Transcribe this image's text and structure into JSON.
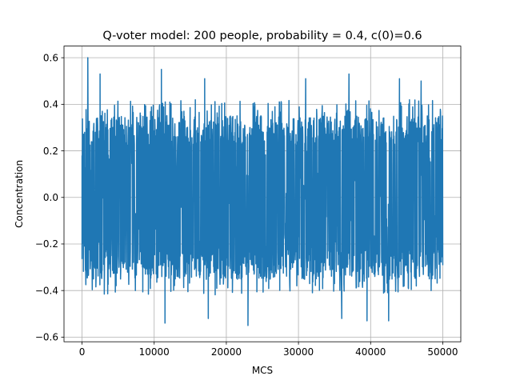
{
  "chart_data": {
    "type": "line",
    "title": "Q-voter model: 200 people,  probability = 0.4, c(0)=0.6",
    "xlabel": "MCS",
    "ylabel": "Concentration",
    "xlim": [
      -2500,
      52500
    ],
    "ylim": [
      -0.62,
      0.65
    ],
    "grid": true,
    "line_color": "#1f77b4",
    "x_ticks": [
      0,
      10000,
      20000,
      30000,
      40000,
      50000
    ],
    "x_tick_labels": [
      "0",
      "10000",
      "20000",
      "30000",
      "40000",
      "50000"
    ],
    "y_ticks": [
      -0.6,
      -0.4,
      -0.2,
      0.0,
      0.2,
      0.4,
      0.6
    ],
    "y_tick_labels": [
      "−0.6",
      "−0.4",
      "−0.2",
      "0.0",
      "0.2",
      "0.4",
      "0.6"
    ],
    "series": [
      {
        "name": "concentration",
        "x_start": 0,
        "x_end": 50000,
        "n_points": 50000,
        "initial_value": 0.6,
        "typical_min": -0.32,
        "typical_max": 0.32,
        "peaks": [
          {
            "x": 800,
            "value": 0.6
          },
          {
            "x": 2500,
            "value": 0.53
          },
          {
            "x": 11000,
            "value": 0.55
          },
          {
            "x": 17000,
            "value": 0.51
          },
          {
            "x": 31000,
            "value": 0.51
          },
          {
            "x": 37000,
            "value": 0.53
          },
          {
            "x": 44000,
            "value": 0.51
          },
          {
            "x": 47000,
            "value": 0.5
          },
          {
            "x": 23000,
            "value": -0.55
          },
          {
            "x": 11500,
            "value": -0.54
          },
          {
            "x": 39500,
            "value": -0.53
          },
          {
            "x": 42500,
            "value": -0.53
          },
          {
            "x": 17500,
            "value": -0.52
          },
          {
            "x": 36000,
            "value": -0.52
          }
        ]
      }
    ]
  }
}
